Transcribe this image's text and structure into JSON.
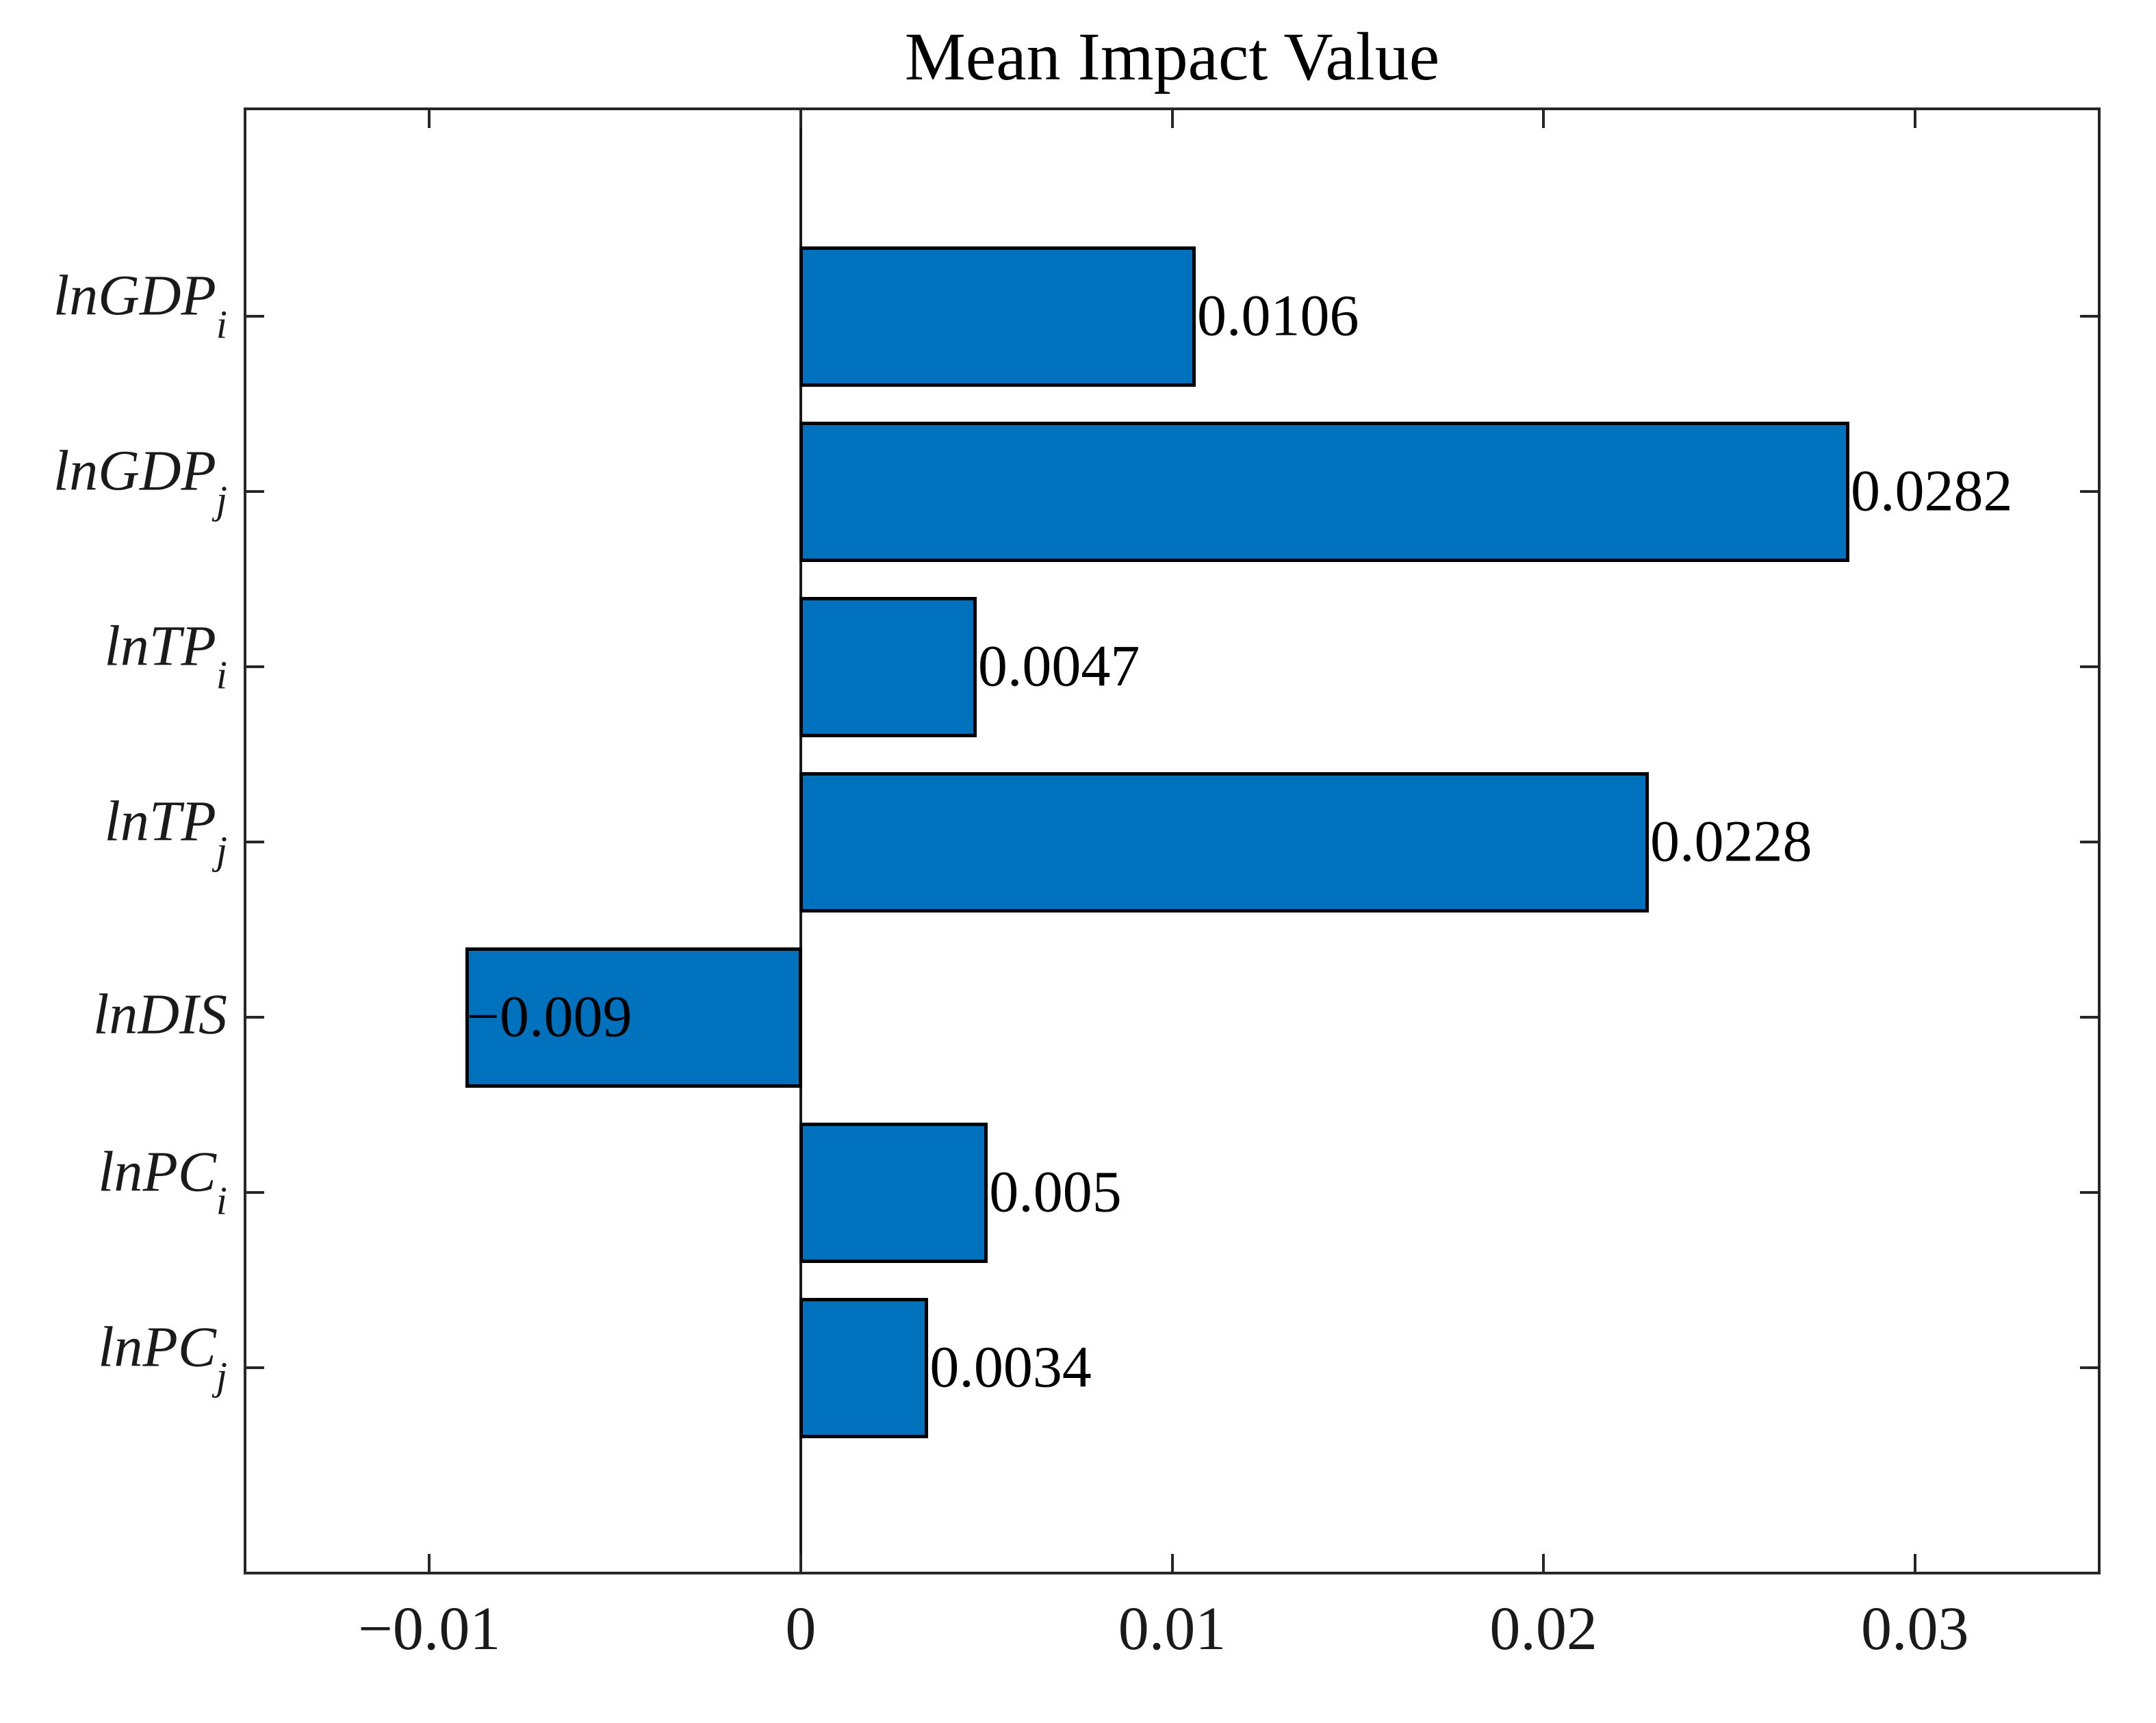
{
  "title": "Mean Impact Value",
  "chart_data": {
    "type": "bar",
    "orientation": "horizontal",
    "title": "Mean Impact Value",
    "categories": [
      "lnGDPi",
      "lnGDPj",
      "lnTPi",
      "lnTPj",
      "lnDIS",
      "lnPCi",
      "lnPCj"
    ],
    "category_parts": [
      {
        "base": "lnGDP",
        "sub": "i"
      },
      {
        "base": "lnGDP",
        "sub": "j"
      },
      {
        "base": "lnTP",
        "sub": "i"
      },
      {
        "base": "lnTP",
        "sub": "j"
      },
      {
        "base": "lnDIS",
        "sub": ""
      },
      {
        "base": "lnPC",
        "sub": "i"
      },
      {
        "base": "lnPC",
        "sub": "j"
      }
    ],
    "values": [
      0.0106,
      0.0282,
      0.0047,
      0.0228,
      -0.009,
      0.005,
      0.0034
    ],
    "value_labels": [
      "0.0106",
      "0.0282",
      "0.0047",
      "0.0228",
      "−0.009",
      "0.005",
      "0.0034"
    ],
    "xlabel": "",
    "ylabel": "",
    "xlim": [
      -0.015,
      0.035
    ],
    "xticks": [
      {
        "value": -0.01,
        "label": "−0.01"
      },
      {
        "value": 0,
        "label": "0"
      },
      {
        "value": 0.01,
        "label": "0.01"
      },
      {
        "value": 0.02,
        "label": "0.02"
      },
      {
        "value": 0.03,
        "label": "0.03"
      }
    ],
    "grid": false,
    "legend": null,
    "bar_color": "#0072BD",
    "bar_edge_color": "#000000",
    "axis_color": "#262626",
    "text_color": "#000000",
    "background_color": "#ffffff"
  }
}
